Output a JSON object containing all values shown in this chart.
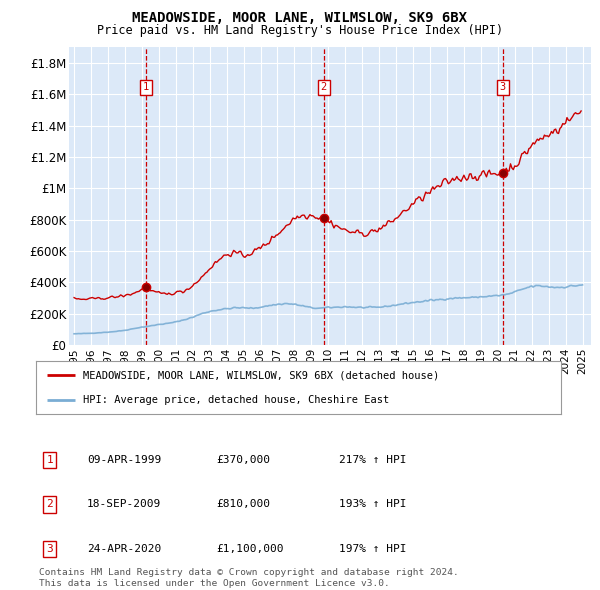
{
  "title": "MEADOWSIDE, MOOR LANE, WILMSLOW, SK9 6BX",
  "subtitle": "Price paid vs. HM Land Registry's House Price Index (HPI)",
  "footer_line1": "Contains HM Land Registry data © Crown copyright and database right 2024.",
  "footer_line2": "This data is licensed under the Open Government Licence v3.0.",
  "legend_label_red": "MEADOWSIDE, MOOR LANE, WILMSLOW, SK9 6BX (detached house)",
  "legend_label_blue": "HPI: Average price, detached house, Cheshire East",
  "sale_year_nums": [
    1999.25,
    2009.72,
    2020.3
  ],
  "sale_prices": [
    370000,
    810000,
    1100000
  ],
  "sale_labels": [
    "1",
    "2",
    "3"
  ],
  "sale_table": [
    [
      "1",
      "09-APR-1999",
      "£370,000",
      "217% ↑ HPI"
    ],
    [
      "2",
      "18-SEP-2009",
      "£810,000",
      "193% ↑ HPI"
    ],
    [
      "3",
      "24-APR-2020",
      "£1,100,000",
      "197% ↑ HPI"
    ]
  ],
  "ylim": [
    0,
    1900000
  ],
  "yticks": [
    0,
    200000,
    400000,
    600000,
    800000,
    1000000,
    1200000,
    1400000,
    1600000,
    1800000
  ],
  "ytick_labels": [
    "£0",
    "£200K",
    "£400K",
    "£600K",
    "£800K",
    "£1M",
    "£1.2M",
    "£1.4M",
    "£1.6M",
    "£1.8M"
  ],
  "xlim_start": 1994.7,
  "xlim_end": 2025.5,
  "xticks": [
    1995,
    1996,
    1997,
    1998,
    1999,
    2000,
    2001,
    2002,
    2003,
    2004,
    2005,
    2006,
    2007,
    2008,
    2009,
    2010,
    2011,
    2012,
    2013,
    2014,
    2015,
    2016,
    2017,
    2018,
    2019,
    2020,
    2021,
    2022,
    2023,
    2024,
    2025
  ],
  "bg_color": "#dce9f8",
  "red_color": "#cc0000",
  "blue_color": "#7aadd4",
  "grid_color": "#ffffff",
  "marker_box_color": "#cc0000",
  "hpi_anchors_x": [
    1995.0,
    1996.0,
    1997.0,
    1997.5,
    1998.0,
    1998.5,
    1999.0,
    1999.5,
    2000.0,
    2000.5,
    2001.0,
    2001.5,
    2002.0,
    2002.5,
    2003.0,
    2003.5,
    2004.0,
    2004.5,
    2005.0,
    2005.5,
    2006.0,
    2006.5,
    2007.0,
    2007.5,
    2008.0,
    2008.5,
    2009.0,
    2009.5,
    2010.0,
    2010.5,
    2011.0,
    2011.5,
    2012.0,
    2012.5,
    2013.0,
    2013.5,
    2014.0,
    2014.5,
    2015.0,
    2015.5,
    2016.0,
    2016.5,
    2017.0,
    2017.5,
    2018.0,
    2018.5,
    2019.0,
    2019.5,
    2020.0,
    2020.5,
    2021.0,
    2021.5,
    2022.0,
    2022.5,
    2023.0,
    2023.5,
    2024.0,
    2024.5,
    2025.0
  ],
  "hpi_anchors_y": [
    72000,
    76000,
    83000,
    88000,
    95000,
    105000,
    115000,
    122000,
    132000,
    138000,
    148000,
    162000,
    178000,
    200000,
    215000,
    225000,
    232000,
    238000,
    238000,
    235000,
    242000,
    252000,
    260000,
    265000,
    260000,
    250000,
    238000,
    235000,
    240000,
    242000,
    245000,
    242000,
    240000,
    240000,
    242000,
    248000,
    256000,
    265000,
    272000,
    278000,
    285000,
    290000,
    296000,
    300000,
    302000,
    304000,
    308000,
    312000,
    316000,
    322000,
    338000,
    358000,
    375000,
    378000,
    372000,
    368000,
    372000,
    378000,
    385000
  ],
  "red_anchors_x": [
    1995.0,
    1995.5,
    1996.0,
    1996.5,
    1997.0,
    1997.5,
    1998.0,
    1998.5,
    1999.0,
    1999.25,
    1999.5,
    2000.0,
    2000.5,
    2001.0,
    2001.5,
    2002.0,
    2002.5,
    2003.0,
    2003.5,
    2004.0,
    2004.5,
    2005.0,
    2005.5,
    2006.0,
    2006.5,
    2007.0,
    2007.5,
    2008.0,
    2008.5,
    2009.0,
    2009.5,
    2009.72,
    2010.0,
    2010.5,
    2011.0,
    2011.5,
    2012.0,
    2012.5,
    2013.0,
    2013.5,
    2014.0,
    2014.5,
    2015.0,
    2015.5,
    2016.0,
    2016.5,
    2017.0,
    2017.5,
    2018.0,
    2018.5,
    2019.0,
    2019.5,
    2020.0,
    2020.3,
    2020.5,
    2021.0,
    2021.5,
    2022.0,
    2022.5,
    2023.0,
    2023.5,
    2024.0,
    2024.5,
    2024.9
  ],
  "red_anchors_y": [
    295000,
    292000,
    295000,
    298000,
    302000,
    308000,
    316000,
    330000,
    355000,
    370000,
    348000,
    330000,
    325000,
    335000,
    345000,
    380000,
    430000,
    490000,
    540000,
    580000,
    590000,
    570000,
    590000,
    620000,
    660000,
    710000,
    760000,
    810000,
    830000,
    830000,
    815000,
    810000,
    790000,
    760000,
    730000,
    720000,
    710000,
    720000,
    740000,
    770000,
    810000,
    855000,
    900000,
    940000,
    975000,
    1010000,
    1040000,
    1060000,
    1075000,
    1080000,
    1080000,
    1090000,
    1095000,
    1100000,
    1115000,
    1150000,
    1200000,
    1280000,
    1310000,
    1340000,
    1380000,
    1420000,
    1460000,
    1490000
  ]
}
